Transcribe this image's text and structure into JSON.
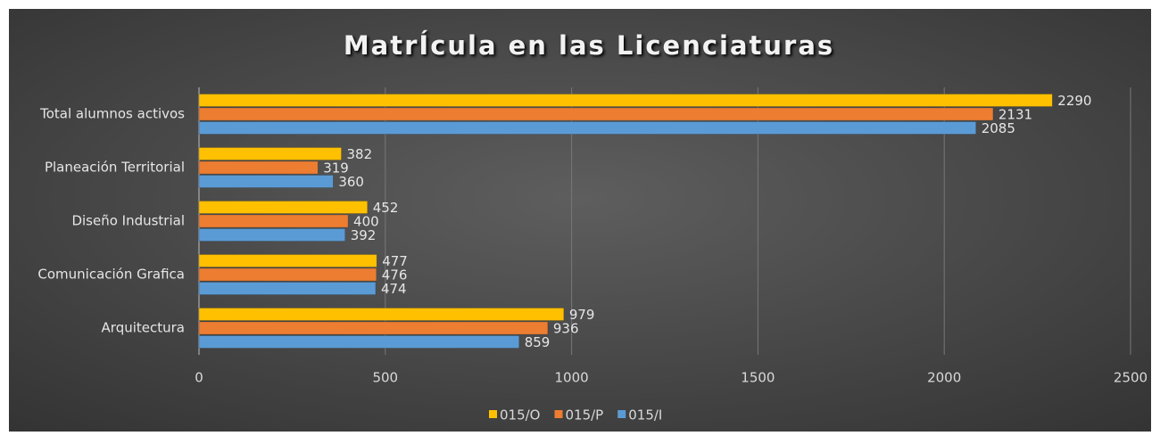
{
  "chart_data": {
    "type": "bar",
    "orientation": "horizontal",
    "title": "MatrÍcula en las Licenciaturas",
    "categories": [
      "Arquitectura",
      "Comunicación Grafica",
      "Diseño Industrial",
      "Planeación Territorial",
      "Total alumnos activos"
    ],
    "series": [
      {
        "name": "015/O",
        "color": "#ffc000",
        "values": [
          979,
          477,
          452,
          382,
          2290
        ]
      },
      {
        "name": "015/P",
        "color": "#ed7d31",
        "values": [
          936,
          476,
          400,
          319,
          2131
        ]
      },
      {
        "name": "015/I",
        "color": "#5b9bd5",
        "values": [
          859,
          474,
          392,
          360,
          2085
        ]
      }
    ],
    "xlim": [
      0,
      2500
    ],
    "xticks": [
      0,
      500,
      1000,
      1500,
      2000,
      2500
    ],
    "grid": true,
    "legend": "bottom",
    "data_labels": true
  }
}
